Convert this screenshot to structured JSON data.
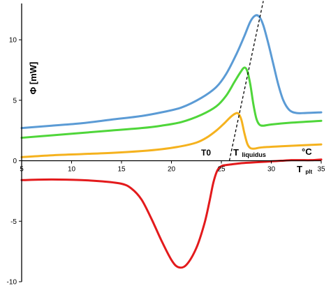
{
  "chart_data": {
    "type": "line",
    "title": "",
    "xlabel": "",
    "ylabel": "Φ [mW]",
    "x_axis_label": {
      "main": "T",
      "sub": "plt"
    },
    "unit_label": "°C",
    "xlim": [
      5,
      35
    ],
    "ylim": [
      -10,
      13
    ],
    "xticks": [
      5,
      10,
      15,
      20,
      25,
      30,
      35
    ],
    "yticks": [
      -10,
      -5,
      0,
      5,
      10
    ],
    "grid": false,
    "legend": "none",
    "annotations": {
      "t0": "T0",
      "tliquidus_main": "T",
      "tliquidus_sub": "liquidus"
    },
    "series": [
      {
        "color": "#5b9bd5",
        "x": [
          5,
          8,
          11,
          14,
          17,
          19,
          21,
          23,
          24.5,
          25.5,
          26.5,
          27.3,
          27.9,
          28.4,
          28.8,
          29.2,
          29.7,
          30.2,
          30.7,
          31.2,
          31.8,
          32.5,
          33.5,
          35
        ],
        "y": [
          2.7,
          2.9,
          3.1,
          3.4,
          3.7,
          4.0,
          4.4,
          5.2,
          6.1,
          7.2,
          8.8,
          10.3,
          11.5,
          12.0,
          11.9,
          11.2,
          9.7,
          8.0,
          6.3,
          5.0,
          4.2,
          3.95,
          3.95,
          4.0
        ]
      },
      {
        "color": "#4fd63a",
        "x": [
          5,
          8,
          11,
          14,
          17,
          19,
          21,
          23,
          24.5,
          25.5,
          26.3,
          26.9,
          27.3,
          27.6,
          27.9,
          28.2,
          28.5,
          28.8,
          29.2,
          30,
          32,
          35
        ],
        "y": [
          1.9,
          2.1,
          2.3,
          2.5,
          2.7,
          2.9,
          3.2,
          3.8,
          4.5,
          5.4,
          6.5,
          7.3,
          7.7,
          7.4,
          6.3,
          4.7,
          3.5,
          3.0,
          2.9,
          3.0,
          3.15,
          3.3
        ]
      },
      {
        "color": "#f5b21e",
        "x": [
          5,
          8,
          11,
          14,
          17,
          19,
          21,
          22.5,
          23.5,
          24.5,
          25.3,
          25.9,
          26.4,
          26.7,
          27.0,
          27.3,
          27.6,
          27.9,
          28.3,
          29,
          31,
          35
        ],
        "y": [
          0.3,
          0.45,
          0.55,
          0.65,
          0.8,
          0.95,
          1.2,
          1.5,
          1.9,
          2.5,
          3.1,
          3.6,
          3.9,
          3.9,
          3.4,
          2.3,
          1.4,
          1.05,
          1.0,
          1.1,
          1.2,
          1.35
        ]
      },
      {
        "color": "#e31a1c",
        "x": [
          5,
          8,
          11,
          13,
          15,
          16,
          17,
          18,
          19,
          20,
          20.7,
          21.5,
          22.5,
          23.3,
          23.8,
          24.2,
          24.6,
          25,
          25.5,
          26,
          27,
          28,
          29,
          30,
          31,
          32,
          33,
          34,
          35
        ],
        "y": [
          -1.6,
          -1.55,
          -1.6,
          -1.7,
          -1.9,
          -2.3,
          -3.2,
          -4.8,
          -6.6,
          -8.2,
          -8.8,
          -8.6,
          -7.2,
          -5.2,
          -3.4,
          -1.8,
          -0.8,
          -0.45,
          -0.35,
          -0.3,
          -0.2,
          -0.15,
          -0.1,
          -0.05,
          0.0,
          0.05,
          0.05,
          0.05,
          0.1
        ]
      }
    ],
    "liquidus_line": {
      "color": "#000000",
      "style": "dashed",
      "from": [
        25.8,
        0
      ],
      "to": [
        29.2,
        13.2
      ]
    }
  }
}
